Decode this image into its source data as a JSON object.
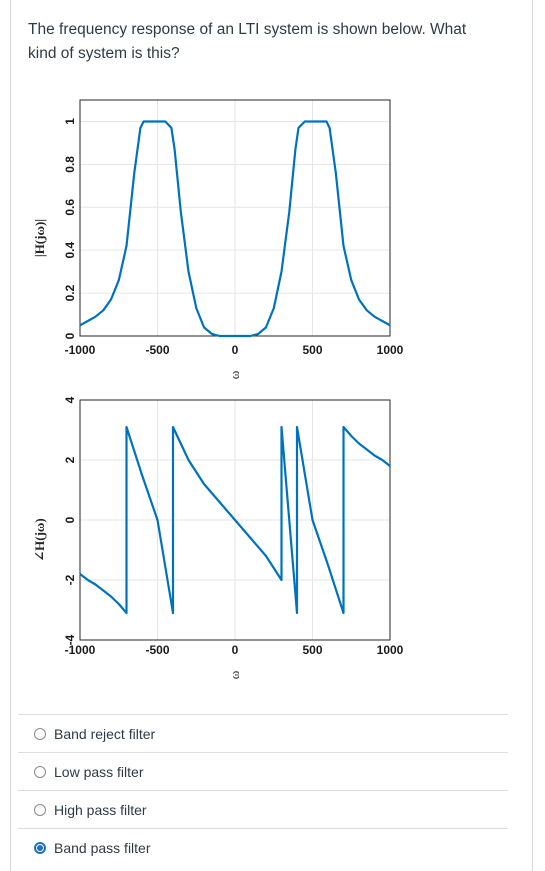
{
  "question": {
    "text": "The frequency response of an LTI system is shown below.  What kind of system is this?"
  },
  "colors": {
    "line": "#0072bd",
    "grid": "#e6e6e6",
    "accent": "#1f6fbf",
    "text": "#2d3b45"
  },
  "chart_data": [
    {
      "type": "line",
      "title": "",
      "xlabel": "ω",
      "ylabel": "|H(jω)|",
      "xlim": [
        -1000,
        1000
      ],
      "ylim": [
        0,
        1.1
      ],
      "xticks": [
        "-1000",
        "-500",
        "0",
        "500",
        "1000"
      ],
      "yticks": [
        "0",
        "0.2",
        "0.4",
        "0.6",
        "0.8",
        "1"
      ],
      "grid": true,
      "series": [
        {
          "x": [
            -1000,
            -950,
            -900,
            -850,
            -800,
            -750,
            -700,
            -650,
            -610,
            -590,
            -550,
            -500,
            -450,
            -410,
            -390,
            -350,
            -300,
            -250,
            -200,
            -150,
            -100,
            -50,
            0,
            50,
            100,
            150,
            200,
            250,
            300,
            350,
            390,
            410,
            450,
            500,
            550,
            590,
            610,
            650,
            700,
            750,
            800,
            850,
            900,
            950,
            1000
          ],
          "y": [
            0.05,
            0.07,
            0.09,
            0.12,
            0.17,
            0.26,
            0.42,
            0.76,
            0.97,
            1,
            1,
            1,
            1,
            0.97,
            0.87,
            0.58,
            0.3,
            0.13,
            0.04,
            0.01,
            0.0,
            0.0,
            0.0,
            0.0,
            0.0,
            0.01,
            0.04,
            0.13,
            0.3,
            0.58,
            0.87,
            0.97,
            1,
            1,
            1,
            1,
            0.97,
            0.76,
            0.42,
            0.26,
            0.17,
            0.12,
            0.09,
            0.07,
            0.05
          ]
        }
      ]
    },
    {
      "type": "line",
      "title": "",
      "xlabel": "ω",
      "ylabel": "∠H(jω)",
      "xlim": [
        -1000,
        1000
      ],
      "ylim": [
        -4,
        4
      ],
      "xticks": [
        "-1000",
        "-500",
        "0",
        "500",
        "1000"
      ],
      "yticks": [
        "-4",
        "-2",
        "0",
        "2",
        "4"
      ],
      "grid": true,
      "series": [
        {
          "x": [
            -1000,
            -950,
            -900,
            -850,
            -800,
            -750,
            -700,
            -700,
            -600,
            -500,
            -400,
            -400,
            -300,
            -200,
            -100,
            0,
            100,
            200,
            300,
            300,
            400,
            400,
            500,
            600,
            700,
            700,
            750,
            800,
            850,
            900,
            950,
            1000
          ],
          "y": [
            -1.8,
            -2.0,
            -2.15,
            -2.35,
            -2.55,
            -2.8,
            -3.1,
            3.1,
            1.5,
            0,
            -3.1,
            3.1,
            2.0,
            1.2,
            0.6,
            0,
            -0.6,
            -1.2,
            -2.0,
            3.1,
            -3.1,
            3.1,
            0,
            -1.5,
            -3.1,
            3.1,
            2.8,
            2.55,
            2.35,
            2.15,
            2.0,
            1.8
          ]
        }
      ]
    }
  ],
  "choices": [
    {
      "label": "Band reject filter",
      "selected": false
    },
    {
      "label": "Low pass filter",
      "selected": false
    },
    {
      "label": "High pass filter",
      "selected": false
    },
    {
      "label": "Band pass filter",
      "selected": true
    }
  ]
}
